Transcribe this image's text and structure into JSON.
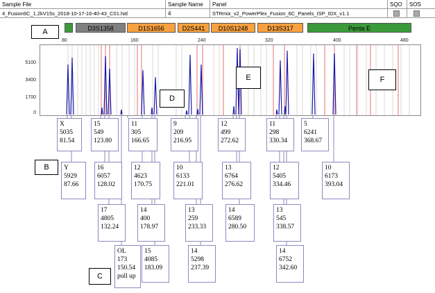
{
  "header": {
    "col_sample_file": "Sample File",
    "col_sample_name": "Sample Name",
    "col_panel": "Panel",
    "col_sqo": "SQO",
    "col_sos": "SOS",
    "sample_file": "4_Fusion6C_1.2kV15s_2018-10-17-16-40-43_C01.hid",
    "sample_name": "4",
    "panel": "STRmix_v2_PowerPlex_Fusion_6C_Panels_ISP_IDX_v1.1"
  },
  "loci": [
    {
      "name": "D3S1358",
      "color": "#808080"
    },
    {
      "name": "D1S1656",
      "color": "#F7A13F"
    },
    {
      "name": "D2S441",
      "color": "#F7A13F"
    },
    {
      "name": "D10S1248",
      "color": "#F7A13F"
    },
    {
      "name": "D13S317",
      "color": "#F7A13F"
    },
    {
      "name": "Penta E",
      "color": "#3a9a3a"
    }
  ],
  "x_ticks": [
    "80",
    "160",
    "240",
    "320",
    "400",
    "480"
  ],
  "y_ticks": [
    "5100",
    "3400",
    "1700",
    "0"
  ],
  "labels": [
    "A",
    "B",
    "C",
    "D",
    "E",
    "F"
  ],
  "alleles": [
    {
      "lines": [
        "X",
        "5035",
        "81.54"
      ]
    },
    {
      "lines": [
        "Y",
        "5929",
        "87.66"
      ]
    },
    {
      "lines": [
        "15",
        "549",
        "123.80"
      ]
    },
    {
      "lines": [
        "16",
        "6057",
        "128.02"
      ]
    },
    {
      "lines": [
        "17",
        "4805",
        "132.24"
      ]
    },
    {
      "lines": [
        "11",
        "305",
        "166.65"
      ]
    },
    {
      "lines": [
        "12",
        "4623",
        "170.75"
      ]
    },
    {
      "lines": [
        "14",
        "400",
        "178.97"
      ]
    },
    {
      "lines": [
        "15",
        "4085",
        "183.09"
      ]
    },
    {
      "lines": [
        "OL",
        "173",
        "150.54",
        "pull up"
      ]
    },
    {
      "lines": [
        "9",
        "209",
        "216.95"
      ]
    },
    {
      "lines": [
        "10",
        "6133",
        "221.01"
      ]
    },
    {
      "lines": [
        "13",
        "259",
        "233.33"
      ]
    },
    {
      "lines": [
        "14",
        "5298",
        "237.39"
      ]
    },
    {
      "lines": [
        "12",
        "499",
        "272.62"
      ]
    },
    {
      "lines": [
        "13",
        "6764",
        "276.62"
      ]
    },
    {
      "lines": [
        "14",
        "6589",
        "280.50"
      ]
    },
    {
      "lines": [
        "11",
        "298",
        "330.34"
      ]
    },
    {
      "lines": [
        "12",
        "5405",
        "334.46"
      ]
    },
    {
      "lines": [
        "13",
        "545",
        "338.57"
      ]
    },
    {
      "lines": [
        "14",
        "6752",
        "342.60"
      ]
    },
    {
      "lines": [
        "5",
        "6241",
        "368.67"
      ]
    },
    {
      "lines": [
        "10",
        "6173",
        "393.04"
      ]
    }
  ]
}
